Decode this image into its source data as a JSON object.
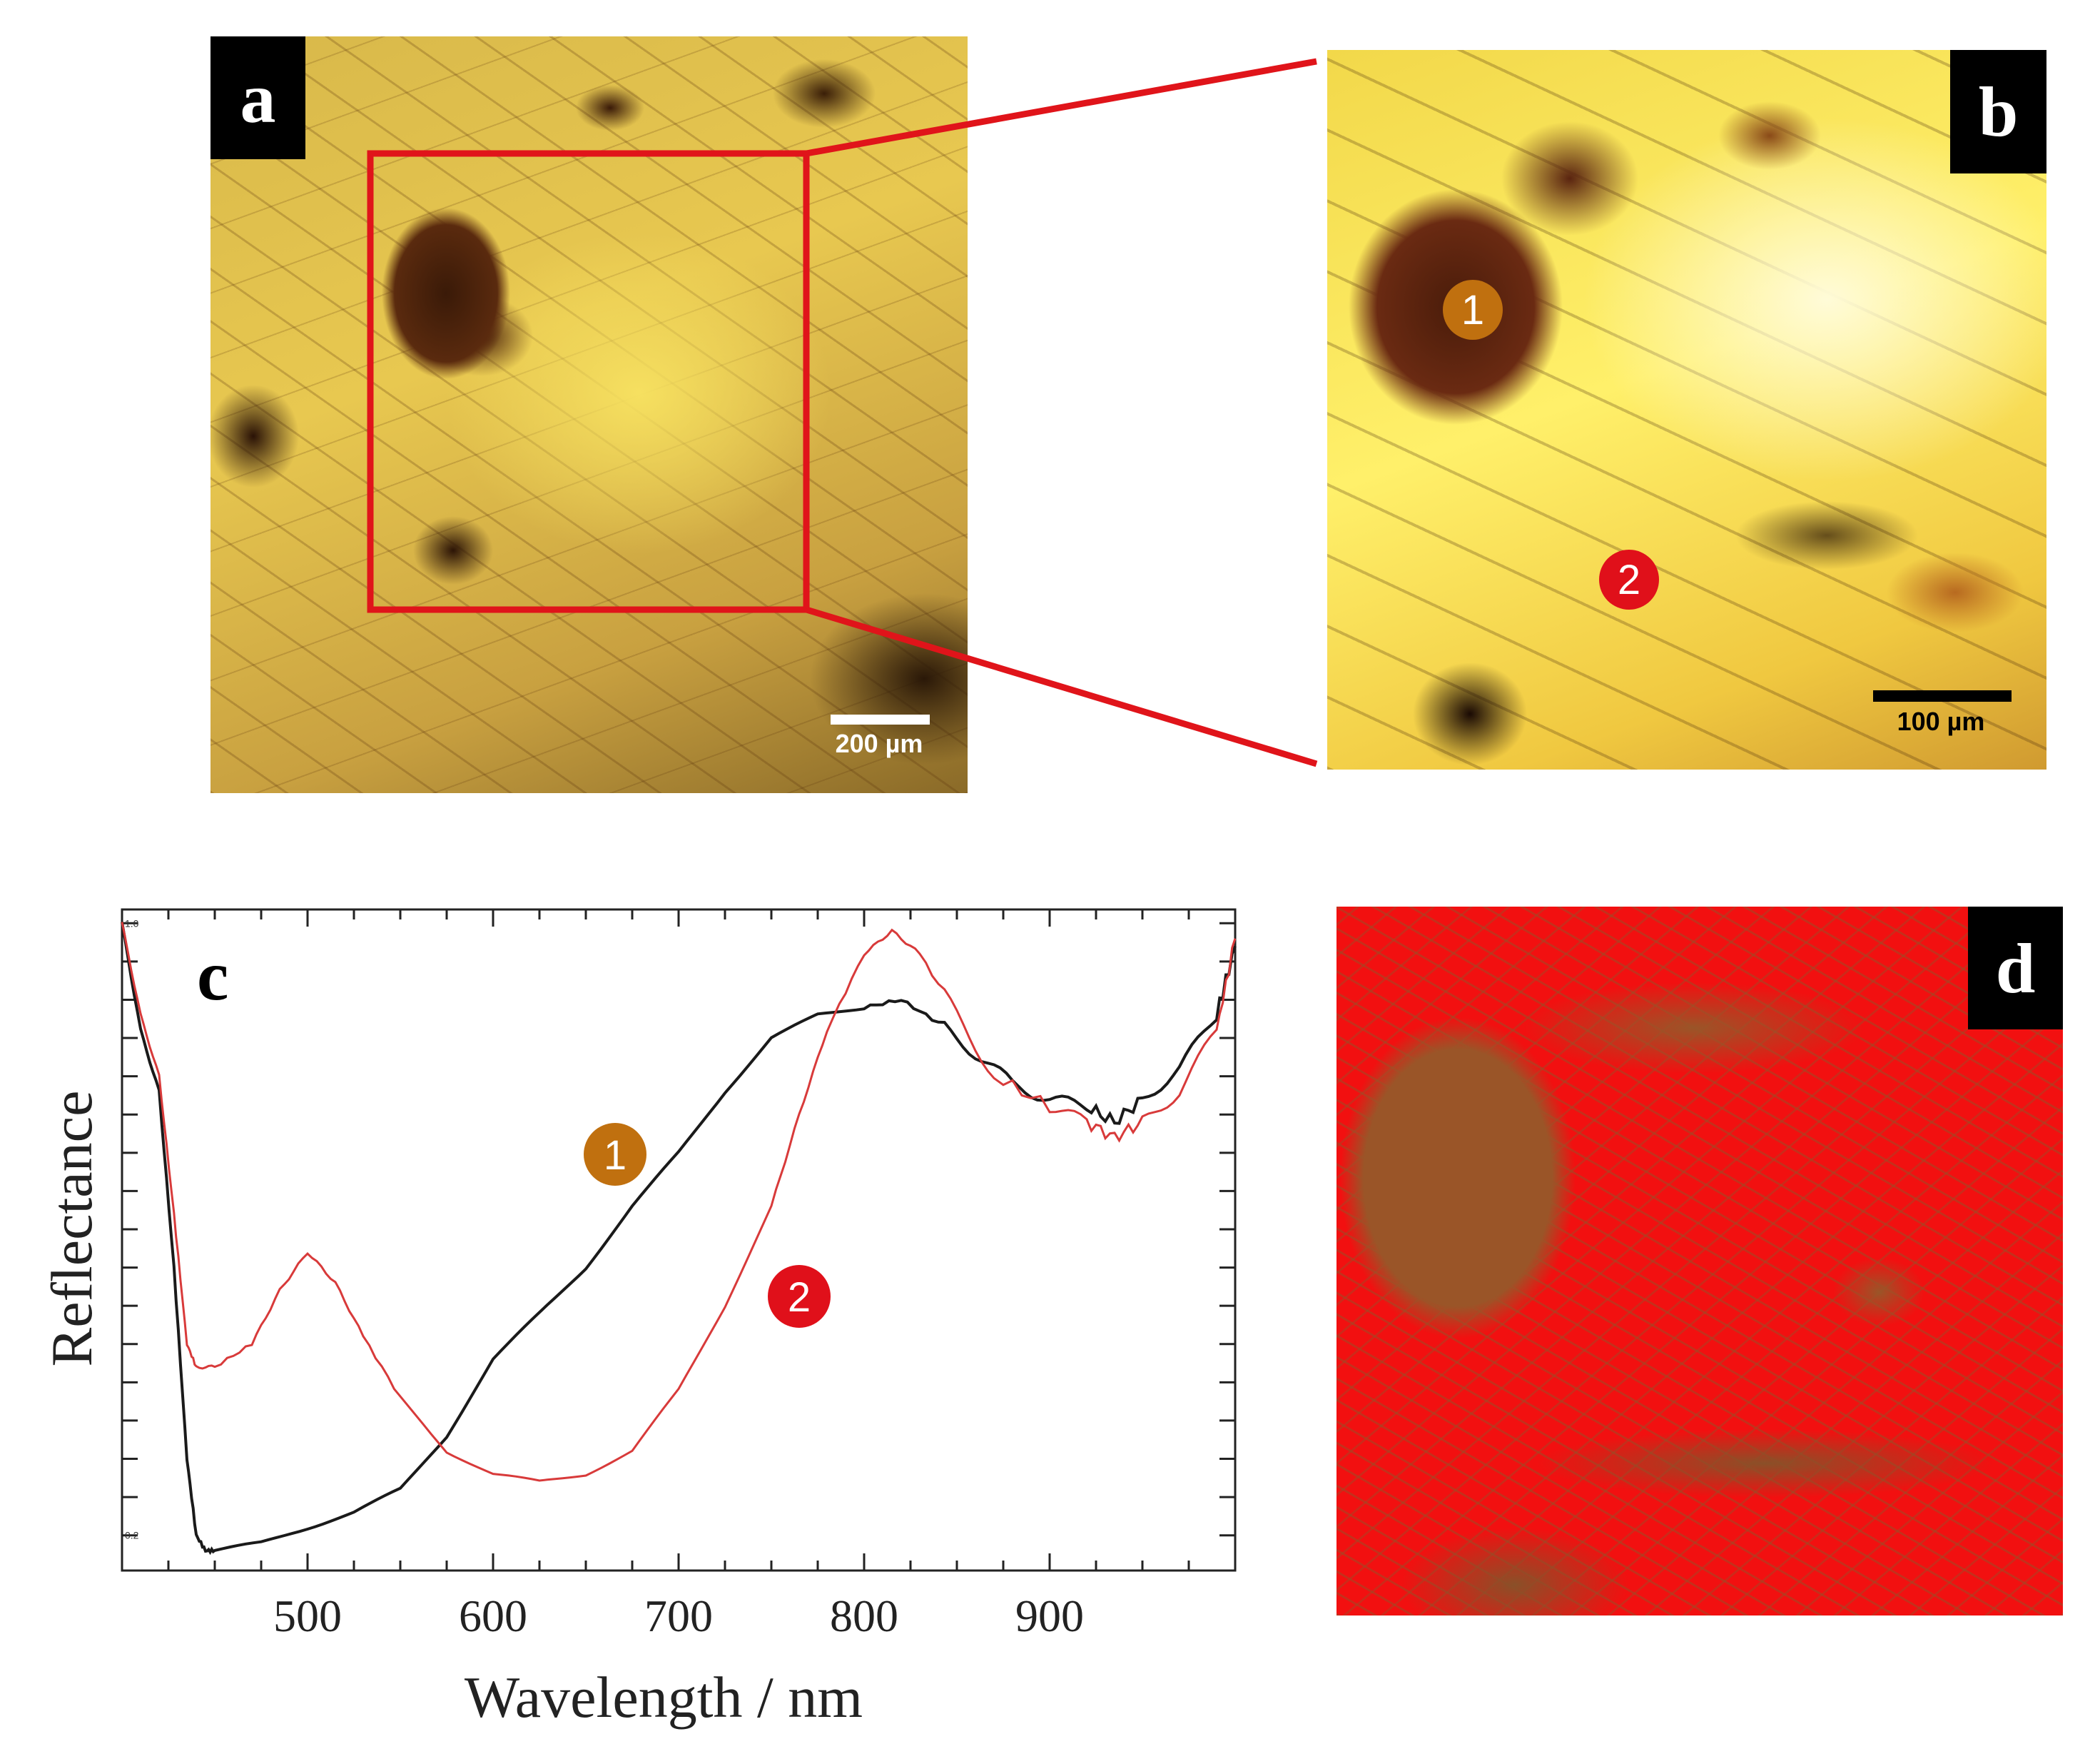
{
  "panels": {
    "a": {
      "label": "a",
      "scale_bar": "200 µm"
    },
    "b": {
      "label": "b",
      "scale_bar": "100 µm",
      "markers": [
        "1",
        "2"
      ]
    },
    "c": {
      "label": "c"
    },
    "d": {
      "label": "d"
    }
  },
  "colors": {
    "zoom_box": "#e0141a",
    "marker_1": "#c0700f",
    "marker_2": "#e0101a",
    "series_1": "#1a1a1a",
    "series_2": "#d83a3a",
    "map_red": "#f21010",
    "map_brown": "#9a5528"
  },
  "chart_data": {
    "type": "line",
    "xlabel": "Wavelength / nm",
    "ylabel": "Reflectance",
    "xlim": [
      400,
      1000
    ],
    "ylim": [
      0.154,
      1.018
    ],
    "x_tick_labels": [
      "500",
      "600",
      "700",
      "800",
      "900"
    ],
    "x_ticks": [
      500,
      600,
      700,
      800,
      900
    ],
    "y_tick_labels": [
      "1.0",
      "0.2"
    ],
    "y_ticks": [
      1.0,
      0.2
    ],
    "grid": false,
    "series": [
      {
        "name": "1",
        "color": "#1a1a1a",
        "x": [
          400,
          410,
          420,
          428,
          435,
          440,
          445,
          450,
          475,
          500,
          525,
          550,
          575,
          600,
          625,
          650,
          675,
          700,
          725,
          750,
          775,
          800,
          820,
          840,
          860,
          880,
          900,
          920,
          935,
          950,
          970,
          990,
          1000
        ],
        "y": [
          1.0,
          0.86,
          0.78,
          0.55,
          0.3,
          0.2,
          0.18,
          0.18,
          0.19,
          0.21,
          0.23,
          0.26,
          0.33,
          0.43,
          0.49,
          0.55,
          0.63,
          0.7,
          0.78,
          0.85,
          0.88,
          0.89,
          0.9,
          0.87,
          0.83,
          0.79,
          0.77,
          0.76,
          0.74,
          0.77,
          0.81,
          0.88,
          0.97
        ]
      },
      {
        "name": "2",
        "color": "#d83a3a",
        "x": [
          400,
          410,
          420,
          428,
          435,
          440,
          450,
          470,
          485,
          500,
          515,
          530,
          550,
          575,
          600,
          625,
          650,
          675,
          700,
          725,
          750,
          765,
          780,
          800,
          815,
          830,
          850,
          870,
          900,
          920,
          935,
          950,
          970,
          990,
          1000
        ],
        "y": [
          1.0,
          0.88,
          0.8,
          0.62,
          0.45,
          0.42,
          0.42,
          0.45,
          0.52,
          0.57,
          0.53,
          0.46,
          0.38,
          0.31,
          0.28,
          0.27,
          0.28,
          0.31,
          0.39,
          0.5,
          0.63,
          0.75,
          0.86,
          0.96,
          0.99,
          0.96,
          0.88,
          0.8,
          0.76,
          0.74,
          0.72,
          0.74,
          0.78,
          0.86,
          0.98
        ]
      }
    ],
    "annotations": [
      "1",
      "2"
    ]
  }
}
